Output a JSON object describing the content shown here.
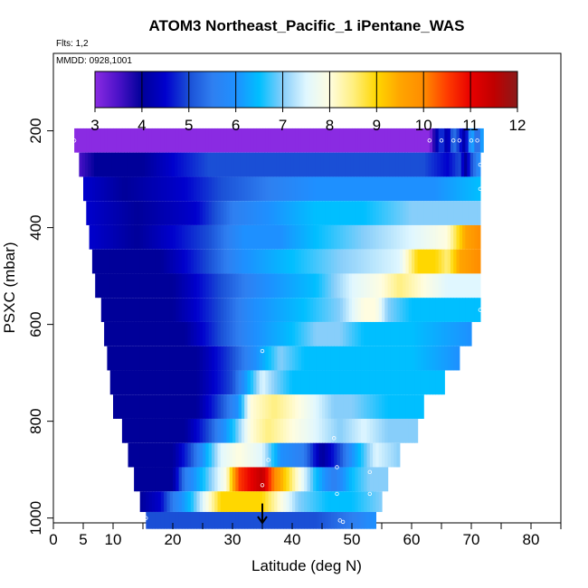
{
  "chart_data": {
    "type": "heatmap",
    "title": "ATOM3 Northeast_Pacific_1 iPentane_WAS",
    "flights_label": "Flts: 1,2",
    "dates_label": "MMDD: 0928,1001",
    "xlabel": "Latitude (deg N)",
    "ylabel": "PSXC (mbar)",
    "xlim": [
      0,
      85
    ],
    "ylim": [
      1010,
      40
    ],
    "x_ticks": [
      0,
      5,
      10,
      20,
      30,
      40,
      50,
      60,
      70,
      80
    ],
    "y_ticks": [
      200,
      400,
      600,
      800,
      1000
    ],
    "colorbar": {
      "ticks": [
        3,
        4,
        5,
        6,
        7,
        8,
        9,
        10,
        11,
        12
      ],
      "range": [
        3,
        12
      ],
      "stops": [
        {
          "v": 3.0,
          "color": "#8a2be2"
        },
        {
          "v": 3.5,
          "color": "#4b12c8"
        },
        {
          "v": 4.0,
          "color": "#000099"
        },
        {
          "v": 4.5,
          "color": "#0000cd"
        },
        {
          "v": 5.0,
          "color": "#1a4fd6"
        },
        {
          "v": 5.5,
          "color": "#2f7ff0"
        },
        {
          "v": 6.0,
          "color": "#1e90ff"
        },
        {
          "v": 6.5,
          "color": "#00bfff"
        },
        {
          "v": 7.0,
          "color": "#87cefa"
        },
        {
          "v": 7.5,
          "color": "#e0f7ff"
        },
        {
          "v": 8.0,
          "color": "#fffde0"
        },
        {
          "v": 8.5,
          "color": "#ffef80"
        },
        {
          "v": 9.0,
          "color": "#ffd700"
        },
        {
          "v": 9.5,
          "color": "#ffa500"
        },
        {
          "v": 10.0,
          "color": "#ff8c00"
        },
        {
          "v": 10.5,
          "color": "#ff3c00"
        },
        {
          "v": 11.0,
          "color": "#e80000"
        },
        {
          "v": 11.5,
          "color": "#c00000"
        },
        {
          "v": 12.0,
          "color": "#8b1a1a"
        }
      ]
    },
    "pressure_bands": [
      {
        "p": 220,
        "lat_start": 3.5,
        "lat_end": 72,
        "knots": [
          [
            3.5,
            3.0
          ],
          [
            63,
            3.0
          ],
          [
            64,
            4.0
          ],
          [
            65,
            5.0
          ],
          [
            66,
            4.0
          ],
          [
            67,
            5.5
          ],
          [
            69,
            4.0
          ],
          [
            70,
            6.5
          ],
          [
            71,
            5.0
          ],
          [
            72,
            6.5
          ]
        ]
      },
      {
        "p": 270,
        "lat_start": 4.3,
        "lat_end": 71.5,
        "knots": [
          [
            4.3,
            3.5
          ],
          [
            7,
            4.0
          ],
          [
            15,
            4.0
          ],
          [
            20,
            4.5
          ],
          [
            26,
            5.0
          ],
          [
            62,
            5.0
          ],
          [
            66,
            4.5
          ],
          [
            68,
            5.0
          ],
          [
            69,
            4.0
          ],
          [
            70,
            5.0
          ],
          [
            71.5,
            6.0
          ]
        ]
      },
      {
        "p": 320,
        "lat_start": 5.0,
        "lat_end": 71.5,
        "knots": [
          [
            5,
            4.5
          ],
          [
            12,
            4.0
          ],
          [
            22,
            4.5
          ],
          [
            28,
            5.0
          ],
          [
            36,
            5.5
          ],
          [
            44,
            6.0
          ],
          [
            56,
            6.0
          ],
          [
            64,
            6.0
          ],
          [
            71.5,
            6.5
          ]
        ]
      },
      {
        "p": 370,
        "lat_start": 5.5,
        "lat_end": 71.5,
        "knots": [
          [
            5.5,
            4.5
          ],
          [
            14,
            4.0
          ],
          [
            24,
            4.5
          ],
          [
            30,
            5.5
          ],
          [
            36,
            6.0
          ],
          [
            44,
            6.5
          ],
          [
            52,
            6.5
          ],
          [
            60,
            7.0
          ],
          [
            71.5,
            7.0
          ]
        ]
      },
      {
        "p": 420,
        "lat_start": 6.0,
        "lat_end": 71.5,
        "knots": [
          [
            6,
            4.5
          ],
          [
            14,
            4.0
          ],
          [
            26,
            5.0
          ],
          [
            32,
            6.0
          ],
          [
            38,
            6.0
          ],
          [
            44,
            6.5
          ],
          [
            52,
            7.0
          ],
          [
            60,
            7.5
          ],
          [
            66,
            8.0
          ],
          [
            69,
            9.5
          ],
          [
            71.5,
            10.0
          ]
        ]
      },
      {
        "p": 470,
        "lat_start": 6.5,
        "lat_end": 71.5,
        "knots": [
          [
            6.5,
            4.0
          ],
          [
            18,
            4.0
          ],
          [
            26,
            5.0
          ],
          [
            32,
            6.0
          ],
          [
            40,
            6.5
          ],
          [
            48,
            7.0
          ],
          [
            58,
            7.5
          ],
          [
            61,
            9.0
          ],
          [
            64,
            9.0
          ],
          [
            66,
            8.5
          ],
          [
            68,
            9.5
          ],
          [
            71.5,
            10.0
          ]
        ]
      },
      {
        "p": 520,
        "lat_start": 7.0,
        "lat_end": 71.5,
        "knots": [
          [
            7,
            4.0
          ],
          [
            20,
            4.0
          ],
          [
            28,
            5.0
          ],
          [
            36,
            6.0
          ],
          [
            44,
            6.5
          ],
          [
            50,
            7.5
          ],
          [
            55,
            8.0
          ],
          [
            58,
            8.5
          ],
          [
            62,
            8.0
          ],
          [
            66,
            7.5
          ],
          [
            71.5,
            7.5
          ]
        ]
      },
      {
        "p": 570,
        "lat_start": 8.0,
        "lat_end": 71.5,
        "knots": [
          [
            8,
            4.0
          ],
          [
            20,
            4.0
          ],
          [
            28,
            5.0
          ],
          [
            34,
            6.0
          ],
          [
            42,
            6.5
          ],
          [
            48,
            7.0
          ],
          [
            52,
            8.0
          ],
          [
            54,
            8.0
          ],
          [
            56,
            7.0
          ],
          [
            60,
            6.5
          ],
          [
            71.5,
            6.5
          ]
        ]
      },
      {
        "p": 620,
        "lat_start": 8.5,
        "lat_end": 70,
        "knots": [
          [
            8.5,
            4.0
          ],
          [
            22,
            4.0
          ],
          [
            28,
            5.0
          ],
          [
            34,
            6.0
          ],
          [
            40,
            6.5
          ],
          [
            44,
            7.0
          ],
          [
            48,
            7.0
          ],
          [
            52,
            6.5
          ],
          [
            60,
            6.5
          ],
          [
            70,
            6.0
          ]
        ]
      },
      {
        "p": 670,
        "lat_start": 9.0,
        "lat_end": 68,
        "knots": [
          [
            9,
            4.0
          ],
          [
            24,
            4.0
          ],
          [
            30,
            5.0
          ],
          [
            34,
            6.0
          ],
          [
            38,
            7.0
          ],
          [
            42,
            6.5
          ],
          [
            46,
            6.5
          ],
          [
            50,
            6.5
          ],
          [
            60,
            6.5
          ],
          [
            68,
            6.0
          ]
        ]
      },
      {
        "p": 720,
        "lat_start": 9.5,
        "lat_end": 65.5,
        "knots": [
          [
            9.5,
            4.0
          ],
          [
            24,
            4.0
          ],
          [
            30,
            5.0
          ],
          [
            33,
            6.5
          ],
          [
            35,
            7.5
          ],
          [
            37,
            7.0
          ],
          [
            40,
            6.5
          ],
          [
            46,
            6.5
          ],
          [
            56,
            6.5
          ],
          [
            65.5,
            6.5
          ]
        ]
      },
      {
        "p": 770,
        "lat_start": 10.0,
        "lat_end": 62,
        "knots": [
          [
            10,
            4.0
          ],
          [
            24,
            4.0
          ],
          [
            28,
            5.0
          ],
          [
            31,
            6.0
          ],
          [
            33,
            8.0
          ],
          [
            37,
            8.5
          ],
          [
            41,
            8.0
          ],
          [
            44,
            7.5
          ],
          [
            47,
            7.0
          ],
          [
            50,
            7.0
          ],
          [
            56,
            6.5
          ],
          [
            62,
            6.5
          ]
        ]
      },
      {
        "p": 820,
        "lat_start": 11.5,
        "lat_end": 61,
        "knots": [
          [
            11.5,
            4.0
          ],
          [
            22,
            4.0
          ],
          [
            26,
            5.0
          ],
          [
            30,
            6.5
          ],
          [
            33,
            8.0
          ],
          [
            36,
            8.5
          ],
          [
            40,
            8.0
          ],
          [
            44,
            7.5
          ],
          [
            48,
            7.0
          ],
          [
            52,
            7.5
          ],
          [
            56,
            7.0
          ],
          [
            61,
            7.0
          ]
        ]
      },
      {
        "p": 870,
        "lat_start": 12.5,
        "lat_end": 58,
        "knots": [
          [
            12.5,
            4.0
          ],
          [
            20,
            4.0
          ],
          [
            23,
            5.0
          ],
          [
            26,
            6.5
          ],
          [
            28,
            7.5
          ],
          [
            31,
            8.0
          ],
          [
            35,
            7.5
          ],
          [
            38,
            6.0
          ],
          [
            42,
            5.5
          ],
          [
            45,
            4.0
          ],
          [
            48,
            5.0
          ],
          [
            50,
            6.0
          ],
          [
            54,
            7.5
          ],
          [
            58,
            7.0
          ]
        ]
      },
      {
        "p": 920,
        "lat_start": 13.5,
        "lat_end": 56,
        "knots": [
          [
            13.5,
            4.0
          ],
          [
            20,
            4.0
          ],
          [
            22,
            5.5
          ],
          [
            25,
            6.5
          ],
          [
            29,
            8.0
          ],
          [
            31,
            10.5
          ],
          [
            33,
            11.0
          ],
          [
            35,
            11.5
          ],
          [
            37,
            10.0
          ],
          [
            39,
            9.0
          ],
          [
            41,
            8.0
          ],
          [
            44,
            6.5
          ],
          [
            47,
            5.5
          ],
          [
            50,
            6.5
          ],
          [
            53,
            7.0
          ],
          [
            56,
            7.0
          ]
        ]
      },
      {
        "p": 970,
        "lat_start": 14.5,
        "lat_end": 55,
        "knots": [
          [
            14.5,
            4.0
          ],
          [
            18,
            4.5
          ],
          [
            20,
            5.5
          ],
          [
            23,
            6.5
          ],
          [
            26,
            8.0
          ],
          [
            28,
            9.0
          ],
          [
            32,
            9.0
          ],
          [
            35,
            9.0
          ],
          [
            38,
            8.0
          ],
          [
            41,
            7.0
          ],
          [
            46,
            6.5
          ],
          [
            50,
            6.5
          ],
          [
            55,
            7.0
          ]
        ]
      },
      {
        "p": 1005,
        "lat_start": 15.5,
        "lat_end": 54,
        "knots": [
          [
            15.5,
            5.0
          ],
          [
            44,
            5.0
          ],
          [
            50,
            5.5
          ],
          [
            54,
            6.0
          ]
        ]
      }
    ],
    "sample_points": [
      [
        3.5,
        220
      ],
      [
        63,
        220
      ],
      [
        65,
        220
      ],
      [
        67,
        220
      ],
      [
        68,
        220
      ],
      [
        70,
        220
      ],
      [
        71,
        220
      ],
      [
        71.5,
        270
      ],
      [
        71.5,
        320
      ],
      [
        71.5,
        570
      ],
      [
        35,
        655
      ],
      [
        47,
        835
      ],
      [
        36,
        880
      ],
      [
        47.5,
        895
      ],
      [
        53,
        905
      ],
      [
        35,
        932
      ],
      [
        47.5,
        950
      ],
      [
        53,
        950
      ],
      [
        15.5,
        1000
      ],
      [
        48,
        1005
      ],
      [
        48.5,
        1008
      ]
    ],
    "marker": {
      "lat": 35,
      "p_top": 970,
      "p_bottom": 1010
    }
  }
}
